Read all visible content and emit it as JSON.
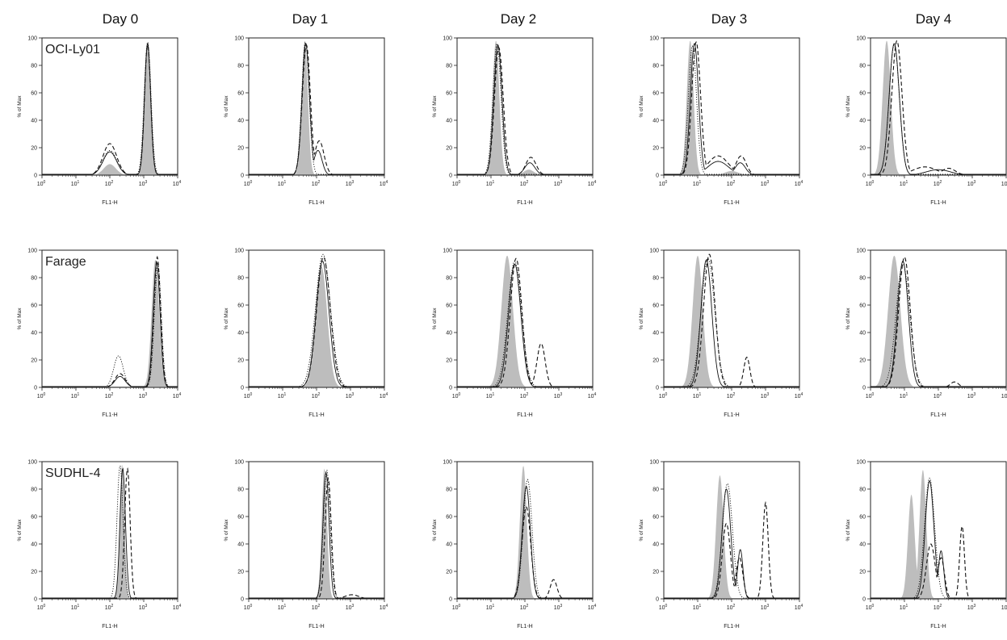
{
  "columns": [
    "Day 0",
    "Day 1",
    "Day 2",
    "Day 3",
    "Day 4"
  ],
  "rows": [
    "OCI-Ly01",
    "Farage",
    "SUDHL-4"
  ],
  "axes": {
    "xlabel": "FL1-H",
    "ylabel": "% of Max",
    "x_scale": "log",
    "xlim": [
      1,
      10000
    ],
    "x_ticks": [
      "10",
      "10",
      "10",
      "10",
      "10"
    ],
    "x_tick_exponents": [
      "0",
      "1",
      "2",
      "3",
      "4"
    ],
    "y_ticks": [
      "0",
      "20",
      "40",
      "60",
      "80",
      "100"
    ],
    "ylim": [
      0,
      100
    ]
  },
  "colors": {
    "filled": "#bdbdbd",
    "line": "#111111",
    "frame": "#222222"
  },
  "chart_data": [
    {
      "type": "area",
      "row": "OCI-Ly01",
      "column": "Day 0",
      "series": [
        {
          "style": "filled",
          "peaks": [
            {
              "x": 100,
              "h": 8,
              "w": 0.18
            },
            {
              "x": 1300,
              "h": 97,
              "w": 0.09
            }
          ]
        },
        {
          "style": "solid",
          "peaks": [
            {
              "x": 100,
              "h": 17,
              "w": 0.2
            },
            {
              "x": 1300,
              "h": 96,
              "w": 0.09
            }
          ]
        },
        {
          "style": "dashed",
          "peaks": [
            {
              "x": 100,
              "h": 23,
              "w": 0.2
            },
            {
              "x": 1300,
              "h": 95,
              "w": 0.09
            }
          ]
        },
        {
          "style": "dotted",
          "peaks": [
            {
              "x": 100,
              "h": 18,
              "w": 0.2
            },
            {
              "x": 1300,
              "h": 97,
              "w": 0.1
            }
          ]
        }
      ]
    },
    {
      "type": "area",
      "row": "OCI-Ly01",
      "column": "Day 1",
      "series": [
        {
          "style": "filled",
          "peaks": [
            {
              "x": 45,
              "h": 98,
              "w": 0.09
            }
          ]
        },
        {
          "style": "solid",
          "peaks": [
            {
              "x": 48,
              "h": 96,
              "w": 0.11
            },
            {
              "x": 110,
              "h": 18,
              "w": 0.12
            }
          ]
        },
        {
          "style": "dashed",
          "peaks": [
            {
              "x": 50,
              "h": 95,
              "w": 0.12
            },
            {
              "x": 120,
              "h": 25,
              "w": 0.14
            }
          ]
        },
        {
          "style": "dotted",
          "peaks": [
            {
              "x": 47,
              "h": 97,
              "w": 0.11
            }
          ]
        }
      ]
    },
    {
      "type": "area",
      "row": "OCI-Ly01",
      "column": "Day 2",
      "series": [
        {
          "style": "filled",
          "peaks": [
            {
              "x": 14,
              "h": 98,
              "w": 0.1
            },
            {
              "x": 130,
              "h": 4,
              "w": 0.15
            }
          ]
        },
        {
          "style": "solid",
          "peaks": [
            {
              "x": 16,
              "h": 95,
              "w": 0.12
            },
            {
              "x": 140,
              "h": 9,
              "w": 0.15
            }
          ]
        },
        {
          "style": "dashed",
          "peaks": [
            {
              "x": 17,
              "h": 93,
              "w": 0.13
            },
            {
              "x": 150,
              "h": 13,
              "w": 0.15
            }
          ]
        },
        {
          "style": "dotted",
          "peaks": [
            {
              "x": 15,
              "h": 96,
              "w": 0.12
            }
          ]
        }
      ]
    },
    {
      "type": "area",
      "row": "OCI-Ly01",
      "column": "Day 3",
      "series": [
        {
          "style": "filled",
          "peaks": [
            {
              "x": 6,
              "h": 98,
              "w": 0.1
            },
            {
              "x": 100,
              "h": 3,
              "w": 0.2
            }
          ]
        },
        {
          "style": "solid",
          "peaks": [
            {
              "x": 8,
              "h": 96,
              "w": 0.12
            },
            {
              "x": 180,
              "h": 9,
              "w": 0.15
            },
            {
              "x": 40,
              "h": 10,
              "w": 0.3
            }
          ]
        },
        {
          "style": "dashed",
          "peaks": [
            {
              "x": 9,
              "h": 97,
              "w": 0.13
            },
            {
              "x": 190,
              "h": 14,
              "w": 0.15
            },
            {
              "x": 40,
              "h": 14,
              "w": 0.3
            }
          ]
        },
        {
          "style": "dotted",
          "peaks": [
            {
              "x": 7,
              "h": 94,
              "w": 0.12
            }
          ]
        }
      ]
    },
    {
      "type": "area",
      "row": "OCI-Ly01",
      "column": "Day 4",
      "series": [
        {
          "style": "filled",
          "peaks": [
            {
              "x": 3,
              "h": 98,
              "w": 0.12
            }
          ]
        },
        {
          "style": "solid",
          "peaks": [
            {
              "x": 5,
              "h": 96,
              "w": 0.15
            },
            {
              "x": 100,
              "h": 4,
              "w": 0.35
            }
          ]
        },
        {
          "style": "dashed",
          "peaks": [
            {
              "x": 6,
              "h": 98,
              "w": 0.15
            },
            {
              "x": 200,
              "h": 5,
              "w": 0.2
            },
            {
              "x": 40,
              "h": 6,
              "w": 0.35
            }
          ]
        },
        {
          "style": "dotted",
          "peaks": [
            {
              "x": 5,
              "h": 95,
              "w": 0.15
            }
          ]
        }
      ]
    },
    {
      "type": "area",
      "row": "Farage",
      "column": "Day 0",
      "series": [
        {
          "style": "filled",
          "peaks": [
            {
              "x": 2200,
              "h": 93,
              "w": 0.11
            }
          ]
        },
        {
          "style": "solid",
          "peaks": [
            {
              "x": 200,
              "h": 8,
              "w": 0.15
            },
            {
              "x": 2400,
              "h": 91,
              "w": 0.1
            }
          ]
        },
        {
          "style": "dashed",
          "peaks": [
            {
              "x": 200,
              "h": 10,
              "w": 0.15
            },
            {
              "x": 2500,
              "h": 95,
              "w": 0.1
            }
          ]
        },
        {
          "style": "dotted",
          "peaks": [
            {
              "x": 180,
              "h": 23,
              "w": 0.14
            },
            {
              "x": 2600,
              "h": 90,
              "w": 0.1
            }
          ]
        }
      ]
    },
    {
      "type": "area",
      "row": "Farage",
      "column": "Day 1",
      "series": [
        {
          "style": "filled",
          "peaks": [
            {
              "x": 140,
              "h": 88,
              "w": 0.17
            }
          ]
        },
        {
          "style": "solid",
          "peaks": [
            {
              "x": 150,
              "h": 92,
              "w": 0.19
            }
          ]
        },
        {
          "style": "dashed",
          "peaks": [
            {
              "x": 160,
              "h": 95,
              "w": 0.2
            }
          ]
        },
        {
          "style": "dotted",
          "peaks": [
            {
              "x": 155,
              "h": 97,
              "w": 0.22
            }
          ]
        }
      ]
    },
    {
      "type": "area",
      "row": "Farage",
      "column": "Day 2",
      "series": [
        {
          "style": "filled",
          "peaks": [
            {
              "x": 30,
              "h": 96,
              "w": 0.17
            }
          ]
        },
        {
          "style": "solid",
          "peaks": [
            {
              "x": 50,
              "h": 90,
              "w": 0.18
            }
          ]
        },
        {
          "style": "dashed",
          "peaks": [
            {
              "x": 55,
              "h": 94,
              "w": 0.17
            },
            {
              "x": 300,
              "h": 32,
              "w": 0.12
            }
          ]
        },
        {
          "style": "dotted",
          "peaks": [
            {
              "x": 50,
              "h": 92,
              "w": 0.2
            }
          ]
        }
      ]
    },
    {
      "type": "area",
      "row": "Farage",
      "column": "Day 3",
      "series": [
        {
          "style": "filled",
          "peaks": [
            {
              "x": 10,
              "h": 96,
              "w": 0.15
            }
          ]
        },
        {
          "style": "solid",
          "peaks": [
            {
              "x": 18,
              "h": 93,
              "w": 0.16
            }
          ]
        },
        {
          "style": "dashed",
          "peaks": [
            {
              "x": 22,
              "h": 97,
              "w": 0.17
            },
            {
              "x": 280,
              "h": 22,
              "w": 0.09
            }
          ]
        },
        {
          "style": "dotted",
          "peaks": [
            {
              "x": 20,
              "h": 94,
              "w": 0.2
            }
          ]
        }
      ]
    },
    {
      "type": "area",
      "row": "Farage",
      "column": "Day 4",
      "series": [
        {
          "style": "filled",
          "peaks": [
            {
              "x": 5,
              "h": 96,
              "w": 0.18
            }
          ]
        },
        {
          "style": "solid",
          "peaks": [
            {
              "x": 9,
              "h": 92,
              "w": 0.16
            }
          ]
        },
        {
          "style": "dashed",
          "peaks": [
            {
              "x": 10,
              "h": 95,
              "w": 0.17
            },
            {
              "x": 300,
              "h": 4,
              "w": 0.12
            }
          ]
        },
        {
          "style": "dotted",
          "peaks": [
            {
              "x": 9,
              "h": 90,
              "w": 0.2
            }
          ]
        }
      ]
    },
    {
      "type": "area",
      "row": "SUDHL-4",
      "column": "Day 0",
      "series": [
        {
          "style": "filled",
          "peaks": [
            {
              "x": 230,
              "h": 98,
              "w": 0.07
            }
          ]
        },
        {
          "style": "solid",
          "peaks": [
            {
              "x": 240,
              "h": 95,
              "w": 0.08
            }
          ]
        },
        {
          "style": "dashed",
          "peaks": [
            {
              "x": 330,
              "h": 95,
              "w": 0.08
            }
          ]
        },
        {
          "style": "dotted",
          "peaks": [
            {
              "x": 200,
              "h": 97,
              "w": 0.09
            }
          ]
        }
      ]
    },
    {
      "type": "area",
      "row": "SUDHL-4",
      "column": "Day 1",
      "series": [
        {
          "style": "filled",
          "peaks": [
            {
              "x": 170,
              "h": 95,
              "w": 0.08
            }
          ]
        },
        {
          "style": "solid",
          "peaks": [
            {
              "x": 190,
              "h": 92,
              "w": 0.09
            }
          ]
        },
        {
          "style": "dashed",
          "peaks": [
            {
              "x": 220,
              "h": 88,
              "w": 0.09
            },
            {
              "x": 1100,
              "h": 3,
              "w": 0.2
            }
          ]
        },
        {
          "style": "dotted",
          "peaks": [
            {
              "x": 200,
              "h": 94,
              "w": 0.1
            }
          ]
        }
      ]
    },
    {
      "type": "area",
      "row": "SUDHL-4",
      "column": "Day 2",
      "series": [
        {
          "style": "filled",
          "peaks": [
            {
              "x": 90,
              "h": 97,
              "w": 0.1
            }
          ]
        },
        {
          "style": "solid",
          "peaks": [
            {
              "x": 110,
              "h": 82,
              "w": 0.12
            }
          ]
        },
        {
          "style": "dashed",
          "peaks": [
            {
              "x": 110,
              "h": 67,
              "w": 0.13
            },
            {
              "x": 700,
              "h": 14,
              "w": 0.1
            }
          ]
        },
        {
          "style": "dotted",
          "peaks": [
            {
              "x": 120,
              "h": 87,
              "w": 0.13
            }
          ]
        }
      ]
    },
    {
      "type": "area",
      "row": "SUDHL-4",
      "column": "Day 3",
      "series": [
        {
          "style": "filled",
          "peaks": [
            {
              "x": 45,
              "h": 90,
              "w": 0.11
            }
          ]
        },
        {
          "style": "solid",
          "peaks": [
            {
              "x": 70,
              "h": 80,
              "w": 0.13
            },
            {
              "x": 180,
              "h": 36,
              "w": 0.08
            }
          ]
        },
        {
          "style": "dashed",
          "peaks": [
            {
              "x": 70,
              "h": 55,
              "w": 0.12
            },
            {
              "x": 170,
              "h": 30,
              "w": 0.1
            },
            {
              "x": 1000,
              "h": 70,
              "w": 0.08
            }
          ]
        },
        {
          "style": "dotted",
          "peaks": [
            {
              "x": 75,
              "h": 84,
              "w": 0.15
            }
          ]
        }
      ]
    },
    {
      "type": "area",
      "row": "SUDHL-4",
      "column": "Day 4",
      "series": [
        {
          "style": "filled",
          "peaks": [
            {
              "x": 16,
              "h": 76,
              "w": 0.1
            },
            {
              "x": 35,
              "h": 94,
              "w": 0.1
            }
          ]
        },
        {
          "style": "solid",
          "peaks": [
            {
              "x": 55,
              "h": 86,
              "w": 0.13
            },
            {
              "x": 120,
              "h": 35,
              "w": 0.08
            }
          ]
        },
        {
          "style": "dashed",
          "peaks": [
            {
              "x": 60,
              "h": 40,
              "w": 0.13
            },
            {
              "x": 120,
              "h": 30,
              "w": 0.1
            },
            {
              "x": 500,
              "h": 53,
              "w": 0.07
            }
          ]
        },
        {
          "style": "dotted",
          "peaks": [
            {
              "x": 55,
              "h": 88,
              "w": 0.15
            }
          ]
        }
      ]
    }
  ]
}
